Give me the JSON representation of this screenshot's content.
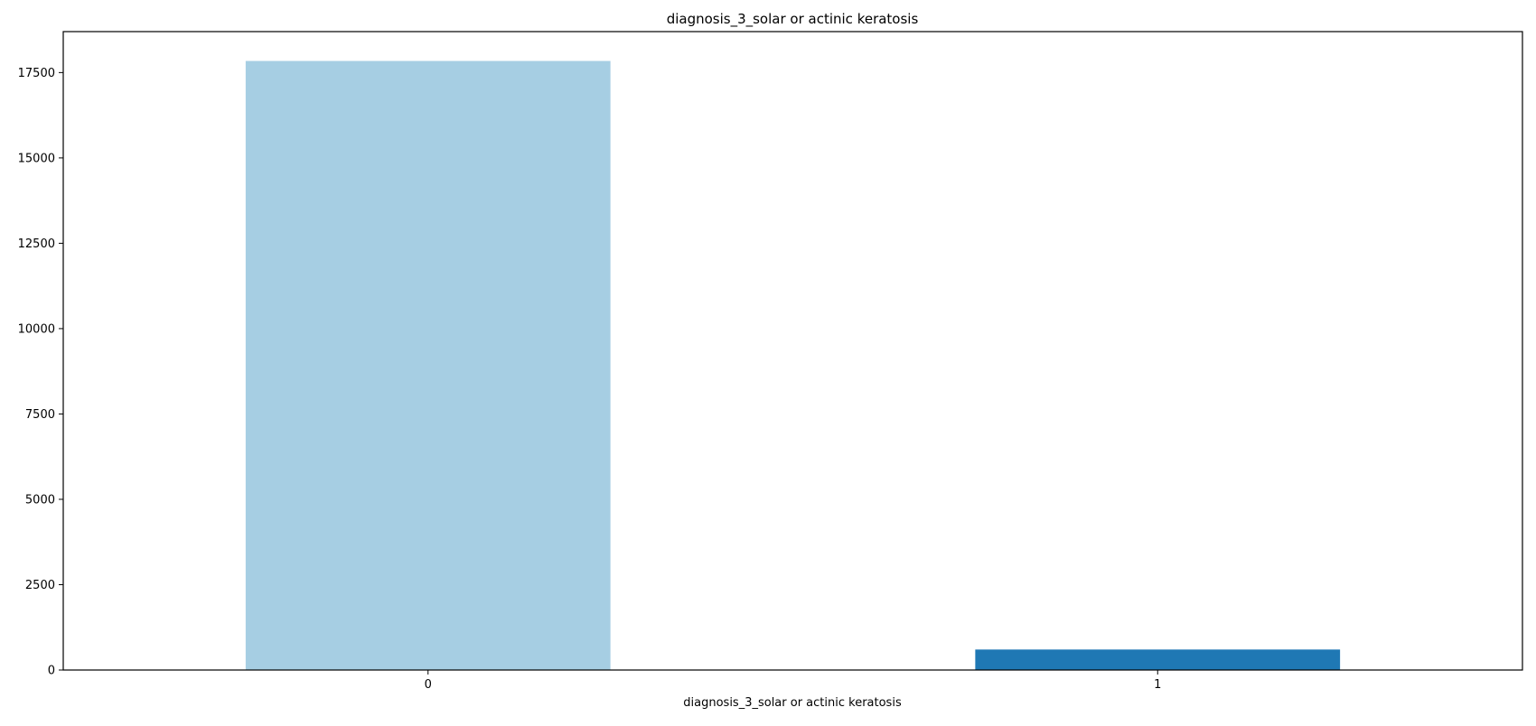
{
  "chart_data": {
    "type": "bar",
    "title": "diagnosis_3_solar or actinic keratosis",
    "xlabel": "diagnosis_3_solar or actinic keratosis",
    "ylabel": "",
    "categories": [
      "0",
      "1"
    ],
    "values": [
      17840,
      600
    ],
    "colors": [
      "#a6cee3",
      "#1f78b4"
    ],
    "ylim": [
      0,
      18700
    ],
    "yticks": [
      0,
      2500,
      5000,
      7500,
      10000,
      12500,
      15000,
      17500
    ],
    "grid": false,
    "legend": "none"
  }
}
